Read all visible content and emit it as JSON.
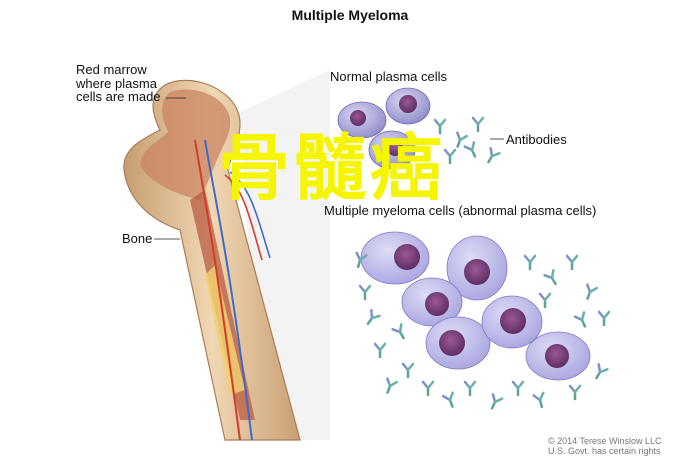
{
  "title": "Multiple Myeloma",
  "labels": {
    "red_marrow": "Red marrow\nwhere plasma\ncells are made",
    "bone": "Bone",
    "normal_plasma_cells": "Normal plasma cells",
    "antibodies": "Antibodies",
    "myeloma_cells": "Multiple myeloma cells (abnormal plasma cells)"
  },
  "overlay_text": "骨髓癌",
  "credit": {
    "line1": "© 2014 Terese Winslow LLC",
    "line2": "U.S. Govt. has certain rights"
  },
  "colors": {
    "bone": "#e9c9a2",
    "marrow": "#b5543a",
    "artery": "#d63a2f",
    "vein": "#3f6bc8",
    "cell": "#b7b6e6",
    "nucleus": "#7a3f7d",
    "overlay": "#f5f500"
  },
  "icons": {
    "antibody": "antibody-icon"
  }
}
